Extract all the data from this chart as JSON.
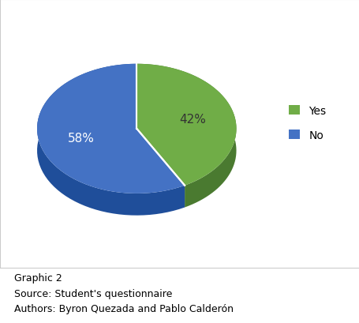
{
  "slices": [
    42,
    58
  ],
  "labels": [
    "Yes",
    "No"
  ],
  "colors": [
    "#70ad47",
    "#4472c4"
  ],
  "dark_colors": [
    "#4a7a30",
    "#1f4e9a"
  ],
  "pct_labels": [
    "42%",
    "58%"
  ],
  "legend_labels": [
    "Yes",
    "No"
  ],
  "caption_line1": "Graphic 2",
  "caption_line2": "Source: Student's questionnaire",
  "caption_line3": "Authors: Byron Quezada and Pablo Calderón",
  "bg_color": "#ffffff",
  "startangle": 90,
  "pct_label_fontsize": 11,
  "legend_fontsize": 10
}
